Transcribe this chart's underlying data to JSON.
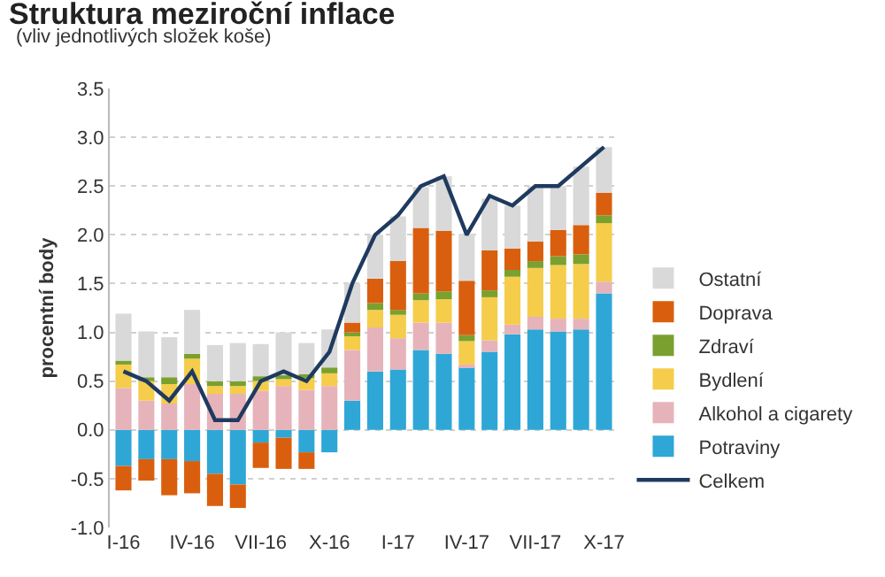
{
  "chart_data": {
    "type": "bar",
    "title": "Struktura meziroční inflace",
    "subtitle": "(vliv jednotlivých složek koše)",
    "ylabel": "procentní body",
    "categories": [
      "I-16",
      null,
      null,
      "IV-16",
      null,
      null,
      "VII-16",
      null,
      null,
      "X-16",
      null,
      null,
      "I-17",
      null,
      null,
      "IV-17",
      null,
      null,
      "VII-17",
      null,
      null,
      "X-17"
    ],
    "stacked": true,
    "grid": "y",
    "legend": "right",
    "ylim": [
      -1,
      3.5
    ],
    "yticks": [
      {
        "value": -1,
        "label": "-1.0"
      },
      {
        "value": -0.5,
        "label": "-0.5"
      },
      {
        "value": 0,
        "label": "0.0"
      },
      {
        "value": 0.5,
        "label": "0.5"
      },
      {
        "value": 1,
        "label": "1.0"
      },
      {
        "value": 1.5,
        "label": "1.5"
      },
      {
        "value": 2,
        "label": "2.0"
      },
      {
        "value": 2.5,
        "label": "2.5"
      },
      {
        "value": 3,
        "label": "3.0"
      },
      {
        "value": 3.5,
        "label": "3.5"
      }
    ],
    "series": [
      {
        "name": "Potraviny",
        "color": "#2ea7d6",
        "values": [
          -0.37,
          -0.3,
          -0.3,
          -0.32,
          -0.45,
          -0.56,
          -0.13,
          -0.08,
          -0.23,
          -0.23,
          0.3,
          0.6,
          0.62,
          0.82,
          0.78,
          0.65,
          0.8,
          0.98,
          1.03,
          1.01,
          1.03,
          1.4
        ]
      },
      {
        "name": "Alkohol a cigarety",
        "color": "#e6b3bb",
        "values": [
          0.43,
          0.3,
          0.27,
          0.47,
          0.37,
          0.37,
          0.4,
          0.45,
          0.41,
          0.45,
          0.52,
          0.45,
          0.32,
          0.28,
          0.32,
          0.02,
          0.12,
          0.1,
          0.13,
          0.13,
          0.11,
          0.12
        ]
      },
      {
        "name": "Bydlení",
        "color": "#f5cd4a",
        "values": [
          0.24,
          0.2,
          0.2,
          0.26,
          0.08,
          0.08,
          0.1,
          0.07,
          0.12,
          0.13,
          0.14,
          0.18,
          0.24,
          0.23,
          0.24,
          0.24,
          0.44,
          0.49,
          0.5,
          0.55,
          0.56,
          0.6
        ]
      },
      {
        "name": "Zdraví",
        "color": "#7aa02f",
        "values": [
          0.04,
          0.04,
          0.07,
          0.05,
          0.05,
          0.05,
          0.05,
          0.04,
          0.04,
          0.06,
          0.04,
          0.07,
          0.05,
          0.07,
          0.08,
          0.06,
          0.07,
          0.07,
          0.07,
          0.09,
          0.1,
          0.08
        ]
      },
      {
        "name": "Doprava",
        "color": "#d95f0e",
        "values": [
          -0.25,
          -0.22,
          -0.37,
          -0.33,
          -0.33,
          -0.24,
          -0.26,
          -0.32,
          -0.17,
          0,
          0.1,
          0.25,
          0.5,
          0.67,
          0.62,
          0.56,
          0.41,
          0.22,
          0.2,
          0.27,
          0.3,
          0.23
        ]
      },
      {
        "name": "Ostatní",
        "color": "#d9d9d9",
        "values": [
          0.48,
          0.47,
          0.41,
          0.45,
          0.37,
          0.39,
          0.33,
          0.44,
          0.32,
          0.39,
          0.4,
          0.45,
          0.46,
          0.42,
          0.56,
          0.48,
          0.53,
          0.44,
          0.57,
          0.45,
          0.6,
          0.47
        ]
      },
      {
        "name": "Celkem",
        "type": "line",
        "color": "#1f3a5f",
        "values": [
          0.6,
          0.5,
          0.3,
          0.6,
          0.1,
          0.1,
          0.5,
          0.6,
          0.5,
          0.8,
          1.5,
          2.0,
          2.2,
          2.5,
          2.6,
          2.0,
          2.4,
          2.3,
          2.5,
          2.5,
          2.7,
          2.9
        ]
      }
    ]
  }
}
